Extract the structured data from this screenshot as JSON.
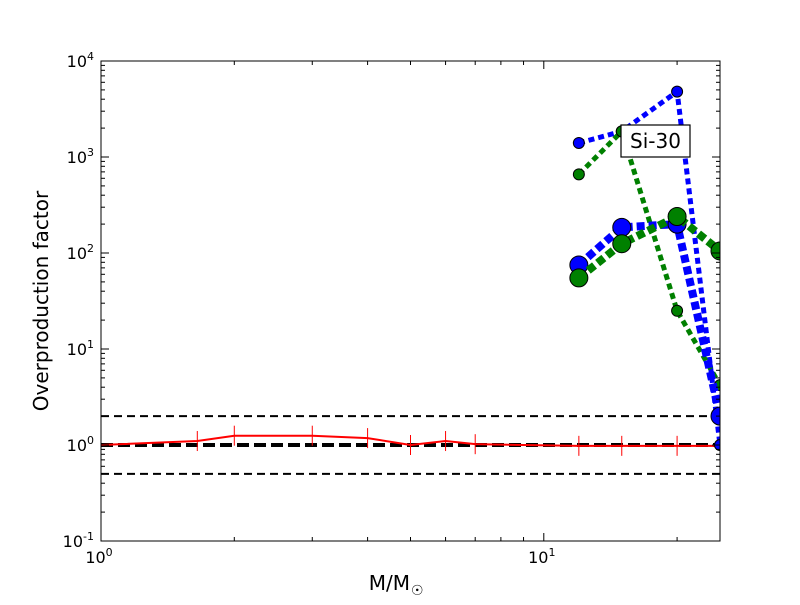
{
  "chart_data": {
    "type": "line",
    "xlabel": "M/M",
    "xlabel_subscript": "☉",
    "ylabel": "Overproduction factor",
    "xscale": "log",
    "yscale": "log",
    "xlim": [
      1,
      25
    ],
    "ylim": [
      0.1,
      10000
    ],
    "x_ticks": [
      {
        "value": 1,
        "base": "10",
        "exp": "0"
      },
      {
        "value": 10,
        "base": "10",
        "exp": "1"
      }
    ],
    "y_ticks": [
      {
        "value": 0.1,
        "base": "10",
        "exp": "-1"
      },
      {
        "value": 1,
        "base": "10",
        "exp": "0"
      },
      {
        "value": 10,
        "base": "10",
        "exp": "1"
      },
      {
        "value": 100,
        "base": "10",
        "exp": "2"
      },
      {
        "value": 1000,
        "base": "10",
        "exp": "3"
      },
      {
        "value": 10000,
        "base": "10",
        "exp": "4"
      }
    ],
    "reference_lines": [
      {
        "y": 2.0,
        "style": "dashed",
        "color": "#000000"
      },
      {
        "y": 1.0,
        "style": "dashed-thick",
        "color": "#000000"
      },
      {
        "y": 0.5,
        "style": "dashed",
        "color": "#000000"
      }
    ],
    "annotation": "Si-30",
    "series": [
      {
        "color": "#ff0000",
        "style": "solid",
        "x": [
          1.0,
          1.65,
          2.0,
          3.0,
          4.0,
          5.0,
          6.0,
          7.0,
          12.0,
          15.0,
          20.0,
          25.0
        ],
        "y": [
          1.0,
          1.1,
          1.25,
          1.25,
          1.18,
          1.0,
          1.1,
          1.02,
          0.98,
          0.98,
          0.98,
          0.98
        ],
        "markers": "tick"
      },
      {
        "color": "#0000ff",
        "style": "dotted",
        "marker_size": "small",
        "x": [
          12.0,
          15.0,
          20.0,
          25.0
        ],
        "y": [
          1400,
          1850,
          4800,
          1.0
        ]
      },
      {
        "color": "#008000",
        "style": "dotted",
        "marker_size": "small",
        "x": [
          12.0,
          15.0,
          20.0,
          25.0
        ],
        "y": [
          660,
          1850,
          25,
          4.2
        ]
      },
      {
        "color": "#0000ff",
        "style": "dotted",
        "marker_size": "large",
        "x": [
          12.0,
          15.0,
          20.0,
          25.0
        ],
        "y": [
          75,
          185,
          200,
          2.0
        ]
      },
      {
        "color": "#008000",
        "style": "dotted",
        "marker_size": "large",
        "x": [
          12.0,
          15.0,
          20.0,
          25.0
        ],
        "y": [
          55,
          125,
          240,
          105
        ]
      }
    ]
  }
}
